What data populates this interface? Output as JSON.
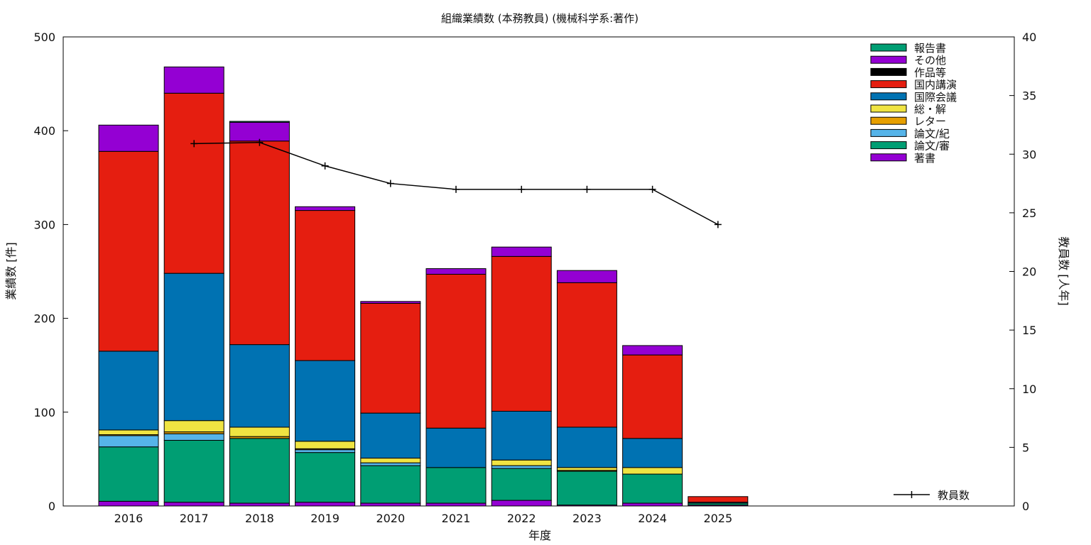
{
  "chart_data": {
    "type": "bar",
    "stacked": true,
    "title": "組織業績数 (本務教員) (機械科学系:著作)",
    "xlabel": "年度",
    "ylabel": "業績数 [件]",
    "y2label": "教員数 [人年]",
    "ylim": [
      0,
      500
    ],
    "y2lim": [
      0,
      40
    ],
    "yticks": [
      0,
      100,
      200,
      300,
      400,
      500
    ],
    "y2ticks": [
      0,
      5,
      10,
      15,
      20,
      25,
      30,
      35,
      40
    ],
    "grid": false,
    "legend_position": "top-right",
    "categories": [
      "2016",
      "2017",
      "2018",
      "2019",
      "2020",
      "2021",
      "2022",
      "2023",
      "2024",
      "2025"
    ],
    "series": [
      {
        "name": "著書",
        "color": "#9400d3",
        "values": [
          5,
          4,
          3,
          4,
          3,
          3,
          6,
          1,
          3,
          1
        ]
      },
      {
        "name": "論文/審",
        "color": "#009e73",
        "values": [
          58,
          66,
          69,
          53,
          40,
          38,
          34,
          36,
          31,
          2
        ]
      },
      {
        "name": "論文/紀",
        "color": "#56b4e9",
        "values": [
          12,
          7,
          0,
          3,
          3,
          0,
          3,
          0,
          0,
          0
        ]
      },
      {
        "name": "レター",
        "color": "#e69f00",
        "values": [
          1,
          2,
          2,
          1,
          0,
          0,
          0,
          1,
          0,
          0
        ]
      },
      {
        "name": "総・解",
        "color": "#f0e442",
        "values": [
          5,
          12,
          10,
          8,
          5,
          0,
          6,
          3,
          7,
          0
        ]
      },
      {
        "name": "国際会議",
        "color": "#0072b2",
        "values": [
          84,
          157,
          88,
          86,
          48,
          42,
          52,
          43,
          31,
          1
        ]
      },
      {
        "name": "国内講演",
        "color": "#e51e10",
        "values": [
          213,
          192,
          217,
          160,
          117,
          164,
          165,
          154,
          89,
          6
        ]
      },
      {
        "name": "作品等",
        "color": "#000000",
        "values": [
          0,
          0,
          0,
          0,
          0,
          0,
          0,
          0,
          0,
          0
        ]
      },
      {
        "name": "その他",
        "color": "#9400d3",
        "values": [
          28,
          28,
          20,
          4,
          2,
          6,
          10,
          13,
          10,
          0
        ]
      },
      {
        "name": "報告書",
        "color": "#009e73",
        "values": [
          0,
          0,
          1,
          0,
          0,
          0,
          0,
          0,
          0,
          0
        ]
      }
    ],
    "line_series": {
      "name": "教員数",
      "color": "#000000",
      "axis": "y2",
      "values": [
        null,
        30.9,
        31.0,
        29.0,
        27.5,
        27.0,
        27.0,
        27.0,
        27.0,
        24.0
      ]
    }
  }
}
